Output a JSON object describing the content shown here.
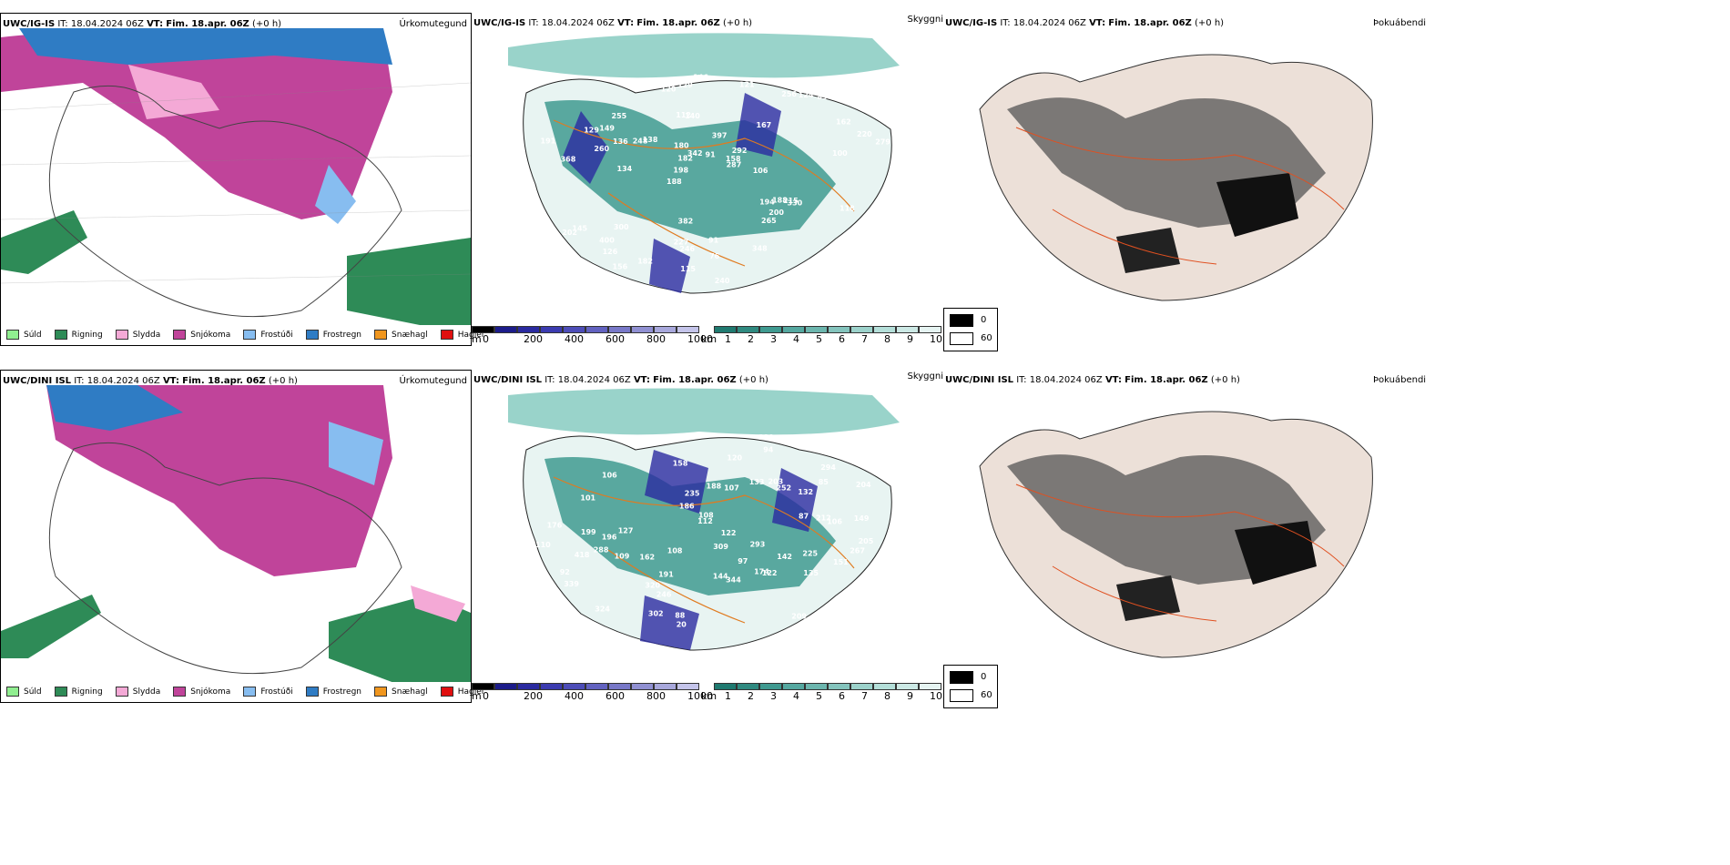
{
  "rows": [
    {
      "model": "UWC/IG-IS",
      "it_label": "IT:",
      "it_value": "18.04.2024 06Z",
      "vt_label": "VT:",
      "vt_value": "Fim. 18.apr. 06Z",
      "lead": "(+0 h)"
    },
    {
      "model": "UWC/DINI ISL",
      "it_label": "IT:",
      "it_value": "18.04.2024 06Z",
      "vt_label": "VT:",
      "vt_value": "Fim. 18.apr. 06Z",
      "lead": "(+0 h)"
    }
  ],
  "panel_titles": {
    "precip_type": "Úrkomutegund",
    "visibility": "Skyggni",
    "fog": "Þokuábendi"
  },
  "precip_legend": [
    {
      "label": "Súld",
      "color": "#90ee90"
    },
    {
      "label": "Rigning",
      "color": "#2e8b57"
    },
    {
      "label": "Slydda",
      "color": "#f4a9d6"
    },
    {
      "label": "Snjókoma",
      "color": "#c0449a"
    },
    {
      "label": "Frostúði",
      "color": "#87bdf0"
    },
    {
      "label": "Frostregn",
      "color": "#2f7cc4"
    },
    {
      "label": "Snæhagl",
      "color": "#f0961e"
    },
    {
      "label": "Haglél",
      "color": "#e01010"
    }
  ],
  "ceiling_bar": {
    "unit": "m",
    "ticks": [
      "0",
      "200",
      "400",
      "600",
      "800",
      "1000"
    ],
    "colors": [
      "#000000",
      "#1c1c8a",
      "#2a2aa0",
      "#3b3bb0",
      "#4d4db8",
      "#6262c0",
      "#7878c8",
      "#9090d2",
      "#a8a8dc",
      "#c4c4ea"
    ]
  },
  "visibility_bar": {
    "unit": "km",
    "ticks": [
      "1",
      "2",
      "3",
      "4",
      "5",
      "6",
      "7",
      "8",
      "9",
      "10"
    ],
    "colors": [
      "#1f7a70",
      "#2f8a80",
      "#3f9a90",
      "#55a8a0",
      "#6cb6ae",
      "#84c4bd",
      "#9cd2cb",
      "#b4dfd9",
      "#cce9e5",
      "#e6f4f2"
    ]
  },
  "fog_legend": [
    {
      "label": "0",
      "color": "#000000"
    },
    {
      "label": "60",
      "color": "#ffffff"
    }
  ],
  "ceiling_labels_top": [
    "368",
    "188",
    "167",
    "112",
    "397",
    "145",
    "138",
    "126",
    "140",
    "292",
    "330",
    "129",
    "194",
    "220",
    "198",
    "227",
    "182",
    "255",
    "256",
    "300",
    "248",
    "215",
    "240",
    "248",
    "260",
    "265",
    "156",
    "279",
    "158",
    "246",
    "287",
    "202",
    "162",
    "200",
    "348",
    "400",
    "91",
    "83",
    "146",
    "134",
    "191",
    "149",
    "124",
    "121",
    "120",
    "342",
    "382",
    "182",
    "188",
    "136",
    "129",
    "82",
    "180",
    "76",
    "91",
    "106",
    "118",
    "115",
    "100"
  ],
  "ceiling_labels_bottom": [
    "288",
    "174",
    "144",
    "101",
    "324",
    "162",
    "132",
    "188",
    "252",
    "319",
    "246",
    "158",
    "293",
    "339",
    "225",
    "122",
    "176",
    "107",
    "212",
    "205",
    "199",
    "109",
    "309",
    "112",
    "122",
    "418",
    "320",
    "203",
    "235",
    "151",
    "267",
    "209",
    "294",
    "243",
    "191",
    "344",
    "302",
    "219",
    "108",
    "196",
    "204",
    "94",
    "133",
    "144",
    "142",
    "149",
    "135",
    "106",
    "186",
    "110",
    "20",
    "108",
    "97",
    "87",
    "88",
    "85",
    "106",
    "120",
    "92",
    "127"
  ]
}
